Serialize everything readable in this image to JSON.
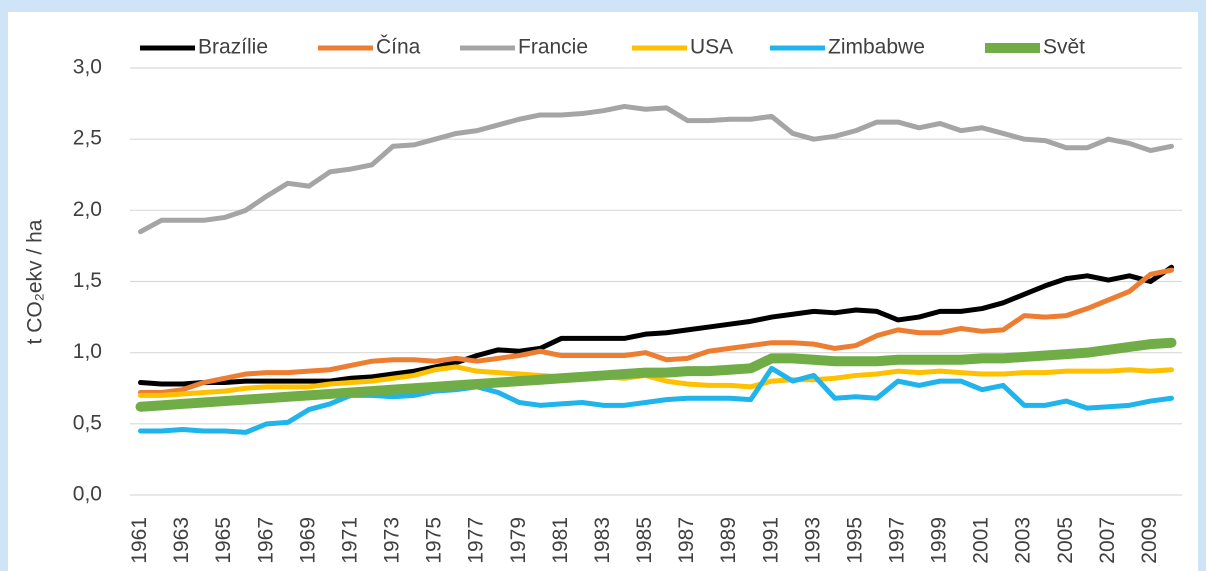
{
  "chart_data": {
    "type": "line",
    "y_label": "t CO₂ekv / ha",
    "x": [
      1961,
      1962,
      1963,
      1964,
      1965,
      1966,
      1967,
      1968,
      1969,
      1970,
      1971,
      1972,
      1973,
      1974,
      1975,
      1976,
      1977,
      1978,
      1979,
      1980,
      1981,
      1982,
      1983,
      1984,
      1985,
      1986,
      1987,
      1988,
      1989,
      1990,
      1991,
      1992,
      1993,
      1994,
      1995,
      1996,
      1997,
      1998,
      1999,
      2000,
      2001,
      2002,
      2003,
      2004,
      2005,
      2006,
      2007,
      2008,
      2009,
      2010
    ],
    "xlim": [
      1960.5,
      2010.5
    ],
    "xticks": [
      1961,
      1963,
      1965,
      1967,
      1969,
      1971,
      1973,
      1975,
      1977,
      1979,
      1981,
      1983,
      1985,
      1987,
      1989,
      1991,
      1993,
      1995,
      1997,
      1999,
      2001,
      2003,
      2005,
      2007,
      2009
    ],
    "ylim": [
      0,
      3
    ],
    "yticks": [
      {
        "value": 0,
        "label": "0,0"
      },
      {
        "value": 0.5,
        "label": "0,5"
      },
      {
        "value": 1,
        "label": "1,0"
      },
      {
        "value": 1.5,
        "label": "1,5"
      },
      {
        "value": 2,
        "label": "2,0"
      },
      {
        "value": 2.5,
        "label": "2,5"
      },
      {
        "value": 3,
        "label": "3,0"
      }
    ],
    "grid": true,
    "legend": "top",
    "series": [
      {
        "name": "Brazílie",
        "color": "#000000",
        "values": [
          0.79,
          0.78,
          0.78,
          0.79,
          0.79,
          0.8,
          0.8,
          0.8,
          0.8,
          0.8,
          0.82,
          0.83,
          0.85,
          0.87,
          0.9,
          0.93,
          0.98,
          1.02,
          1.01,
          1.03,
          1.1,
          1.1,
          1.1,
          1.1,
          1.13,
          1.14,
          1.16,
          1.18,
          1.2,
          1.22,
          1.25,
          1.27,
          1.29,
          1.28,
          1.3,
          1.29,
          1.23,
          1.25,
          1.29,
          1.29,
          1.31,
          1.35,
          1.41,
          1.47,
          1.52,
          1.54,
          1.51,
          1.54,
          1.5,
          1.6
        ]
      },
      {
        "name": "Čína",
        "color": "#ed7d31",
        "values": [
          0.72,
          0.72,
          0.74,
          0.79,
          0.82,
          0.85,
          0.86,
          0.86,
          0.87,
          0.88,
          0.91,
          0.94,
          0.95,
          0.95,
          0.94,
          0.96,
          0.94,
          0.96,
          0.98,
          1.01,
          0.98,
          0.98,
          0.98,
          0.98,
          1.0,
          0.95,
          0.96,
          1.01,
          1.03,
          1.05,
          1.07,
          1.07,
          1.06,
          1.03,
          1.05,
          1.12,
          1.16,
          1.14,
          1.14,
          1.17,
          1.15,
          1.16,
          1.26,
          1.25,
          1.26,
          1.31,
          1.37,
          1.43,
          1.55,
          1.58
        ]
      },
      {
        "name": "Francie",
        "color": "#a5a5a5",
        "values": [
          1.85,
          1.93,
          1.93,
          1.93,
          1.95,
          2.0,
          2.1,
          2.19,
          2.17,
          2.27,
          2.29,
          2.32,
          2.45,
          2.46,
          2.5,
          2.54,
          2.56,
          2.6,
          2.64,
          2.67,
          2.67,
          2.68,
          2.7,
          2.73,
          2.71,
          2.72,
          2.63,
          2.63,
          2.64,
          2.64,
          2.66,
          2.54,
          2.5,
          2.52,
          2.56,
          2.62,
          2.62,
          2.58,
          2.61,
          2.56,
          2.58,
          2.54,
          2.5,
          2.49,
          2.44,
          2.44,
          2.5,
          2.47,
          2.42,
          2.45
        ]
      },
      {
        "name": "USA",
        "color": "#ffc000",
        "values": [
          0.7,
          0.7,
          0.71,
          0.72,
          0.73,
          0.75,
          0.76,
          0.76,
          0.76,
          0.78,
          0.79,
          0.8,
          0.82,
          0.84,
          0.88,
          0.9,
          0.87,
          0.86,
          0.85,
          0.84,
          0.83,
          0.84,
          0.83,
          0.82,
          0.84,
          0.8,
          0.78,
          0.77,
          0.77,
          0.76,
          0.8,
          0.81,
          0.81,
          0.82,
          0.84,
          0.85,
          0.87,
          0.86,
          0.87,
          0.86,
          0.85,
          0.85,
          0.86,
          0.86,
          0.87,
          0.87,
          0.87,
          0.88,
          0.87,
          0.88
        ]
      },
      {
        "name": "Zimbabwe",
        "color": "#1fb4ec",
        "values": [
          0.45,
          0.45,
          0.46,
          0.45,
          0.45,
          0.44,
          0.5,
          0.51,
          0.6,
          0.64,
          0.7,
          0.7,
          0.69,
          0.7,
          0.73,
          0.74,
          0.76,
          0.72,
          0.65,
          0.63,
          0.64,
          0.65,
          0.63,
          0.63,
          0.65,
          0.67,
          0.68,
          0.68,
          0.68,
          0.67,
          0.89,
          0.8,
          0.84,
          0.68,
          0.69,
          0.68,
          0.8,
          0.77,
          0.8,
          0.8,
          0.74,
          0.77,
          0.63,
          0.63,
          0.66,
          0.61,
          0.62,
          0.63,
          0.66,
          0.68
        ]
      },
      {
        "name": "Svět",
        "color": "#70ad47",
        "values": [
          0.62,
          0.63,
          0.64,
          0.65,
          0.66,
          0.67,
          0.68,
          0.69,
          0.7,
          0.71,
          0.72,
          0.73,
          0.74,
          0.75,
          0.76,
          0.77,
          0.78,
          0.79,
          0.8,
          0.81,
          0.82,
          0.83,
          0.84,
          0.85,
          0.86,
          0.86,
          0.87,
          0.87,
          0.88,
          0.89,
          0.96,
          0.96,
          0.95,
          0.94,
          0.94,
          0.94,
          0.95,
          0.95,
          0.95,
          0.95,
          0.96,
          0.96,
          0.97,
          0.98,
          0.99,
          1.0,
          1.02,
          1.04,
          1.06,
          1.07
        ]
      }
    ]
  }
}
